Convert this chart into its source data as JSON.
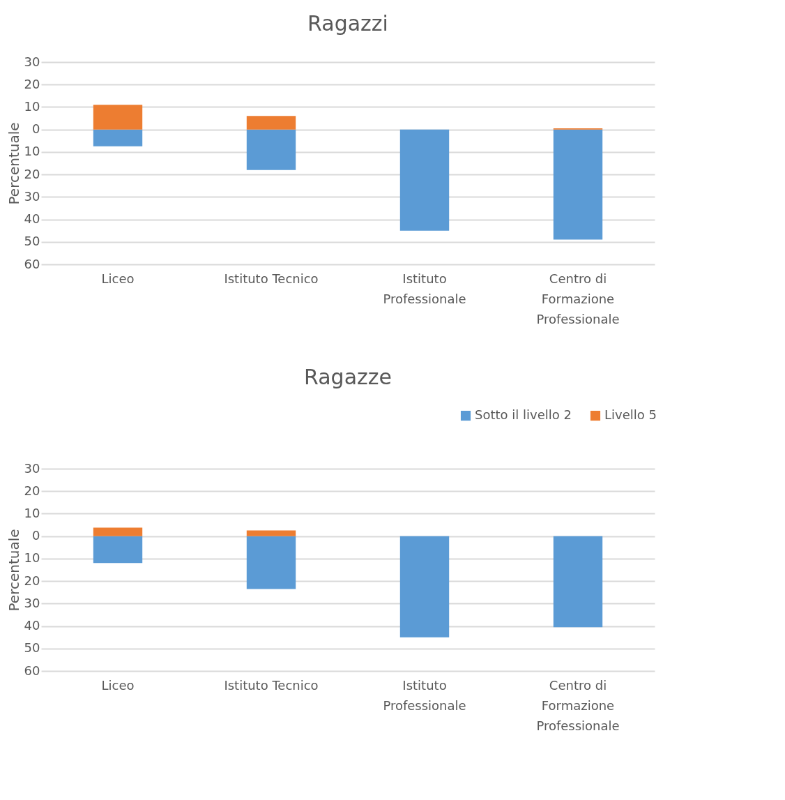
{
  "chart_data": [
    {
      "type": "bar",
      "title": "Ragazzi",
      "ylabel": "Percentuale",
      "categories": [
        "Liceo",
        "Istituto Tecnico",
        "Istituto Professionale",
        "Centro di Formazione Professionale"
      ],
      "stacked": true,
      "series": [
        {
          "color": "#5b9bd5",
          "values": [
            -7.5,
            -18,
            -45,
            -49
          ]
        },
        {
          "color": "#ed7d31",
          "values": [
            11,
            6,
            0,
            0.5
          ]
        }
      ],
      "ylim": [
        -60,
        30
      ],
      "yticks": [
        {
          "value": -60,
          "label": "60"
        },
        {
          "value": -50,
          "label": "50"
        },
        {
          "value": -40,
          "label": "40"
        },
        {
          "value": -30,
          "label": "30"
        },
        {
          "value": -20,
          "label": "20"
        },
        {
          "value": -10,
          "label": "10"
        },
        0,
        10,
        20,
        30
      ],
      "grid": "y",
      "legend": false
    },
    {
      "type": "bar",
      "title": "Ragazze",
      "ylabel": "Percentuale",
      "categories": [
        "Liceo",
        "Istituto Tecnico",
        "Istituto Professionale",
        "Centro di Formazione Professionale"
      ],
      "stacked": true,
      "series": [
        {
          "name": "Sotto il livello 2",
          "color": "#5b9bd5",
          "values": [
            -12,
            -23.5,
            -45,
            -40.5
          ]
        },
        {
          "name": "Livello 5",
          "color": "#ed7d31",
          "values": [
            3.8,
            2.5,
            0,
            0
          ]
        }
      ],
      "ylim": [
        -60,
        30
      ],
      "yticks": [
        {
          "value": -60,
          "label": "60"
        },
        {
          "value": -50,
          "label": "50"
        },
        {
          "value": -40,
          "label": "40"
        },
        {
          "value": -30,
          "label": "30"
        },
        {
          "value": -20,
          "label": "20"
        },
        {
          "value": -10,
          "label": "10"
        },
        0,
        10,
        20,
        30
      ],
      "grid": "y",
      "legend": "top right"
    }
  ]
}
